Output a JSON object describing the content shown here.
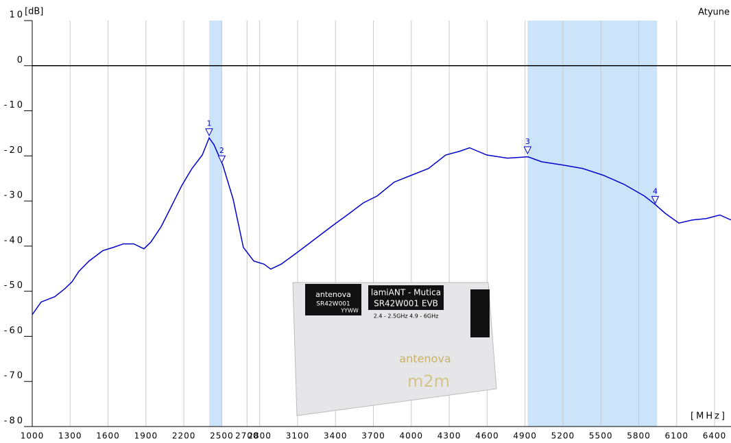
{
  "chart_data": {
    "type": "line",
    "y_label": "[dB]",
    "x_label": "[MHz]",
    "corner_label": "Atyune",
    "xlim": [
      1000,
      6530
    ],
    "ylim": [
      -80,
      10
    ],
    "xticks": [
      1000,
      1300,
      1600,
      1900,
      2200,
      2500,
      2700,
      2800,
      3100,
      3400,
      3700,
      4000,
      4300,
      4600,
      4900,
      5200,
      5500,
      5800,
      6100,
      6400
    ],
    "yticks": [
      -80,
      -70,
      -60,
      -50,
      -40,
      -30,
      -20,
      -10,
      0,
      10
    ],
    "grid": true,
    "shaded_bands": [
      {
        "start": 2400,
        "end": 2500
      },
      {
        "start": 4920,
        "end": 5945
      }
    ],
    "band_color": "#cce4fa",
    "series": [
      {
        "color": "#0000cc",
        "x": [
          1000,
          1070,
          1179,
          1260,
          1315,
          1369,
          1450,
          1559,
          1640,
          1722,
          1803,
          1884,
          1939,
          2020,
          2101,
          2183,
          2264,
          2346,
          2400,
          2438,
          2508,
          2590,
          2671,
          2753,
          2834,
          2888,
          2970,
          3078,
          3187,
          3295,
          3404,
          3512,
          3621,
          3729,
          3865,
          4000,
          4136,
          4272,
          4380,
          4461,
          4597,
          4760,
          4923,
          5031,
          5194,
          5357,
          5520,
          5683,
          5845,
          5927,
          6008,
          6117,
          6225,
          6334,
          6442,
          6529
        ],
        "values": [
          -55.2,
          -52.4,
          -51.2,
          -49.4,
          -47.9,
          -45.6,
          -43.3,
          -41,
          -40.3,
          -39.5,
          -39.5,
          -40.6,
          -39.1,
          -35.7,
          -31.2,
          -26.6,
          -22.8,
          -19.8,
          -16,
          -17.5,
          -22,
          -29.6,
          -40.3,
          -43.3,
          -44,
          -45.1,
          -44,
          -41.8,
          -39.5,
          -37.2,
          -34.9,
          -32.7,
          -30.4,
          -28.9,
          -25.8,
          -24.3,
          -22.8,
          -19.8,
          -19,
          -18.2,
          -19.8,
          -20.5,
          -20.2,
          -21.3,
          -22,
          -22.8,
          -24.3,
          -26.3,
          -28.9,
          -30.7,
          -32.7,
          -34.9,
          -34.2,
          -33.9,
          -33.1,
          -34.2
        ]
      }
    ],
    "markers": [
      {
        "label": "1",
        "x": 2400,
        "y": -15.5
      },
      {
        "label": "2",
        "x": 2500,
        "y": -21.5
      },
      {
        "label": "3",
        "x": 4920,
        "y": -19.5
      },
      {
        "label": "4",
        "x": 5930,
        "y": -30.5
      }
    ]
  },
  "photo": {
    "brand": "antenova",
    "part": "SR42W001",
    "code": "YYWW",
    "title": "lamiANT - Mutica",
    "board": "SR42W001 EVB",
    "bands": "2.4 - 2.5GHz  4.9 - 6GHz",
    "logo": "antenova",
    "logo_sub": "m2m"
  }
}
